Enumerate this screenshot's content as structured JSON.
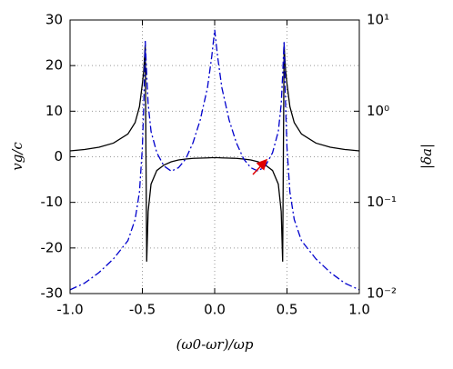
{
  "chart_data": {
    "type": "line",
    "x_label": "(ω0-ωr)/ωp",
    "y_label": "vg/c",
    "y2_label": "|δa|",
    "x": [
      -1,
      -0.9,
      -0.8,
      -0.7,
      -0.6,
      -0.55,
      -0.52,
      -0.5,
      -0.49,
      -0.48,
      -0.47,
      -0.46,
      -0.44,
      -0.4,
      -0.35,
      -0.3,
      -0.25,
      -0.2,
      -0.15,
      -0.1,
      -0.05,
      -0.02,
      0,
      0.02,
      0.05,
      0.1,
      0.15,
      0.2,
      0.25,
      0.3,
      0.35,
      0.4,
      0.44,
      0.46,
      0.47,
      0.48,
      0.49,
      0.5,
      0.52,
      0.55,
      0.6,
      0.7,
      0.8,
      0.9,
      1
    ],
    "series": [
      {
        "name": "vg/c",
        "color": "#000000",
        "dash": "none",
        "values": [
          1.3,
          1.6,
          2.1,
          3.0,
          5.0,
          7.5,
          11,
          16,
          19,
          24.5,
          -23,
          -12,
          -6,
          -3,
          -1.8,
          -1.1,
          -0.7,
          -0.5,
          -0.35,
          -0.3,
          -0.25,
          -0.2,
          -0.2,
          -0.2,
          -0.25,
          -0.3,
          -0.35,
          -0.5,
          -0.7,
          -1.1,
          -1.8,
          -3,
          -6,
          -12,
          -23,
          24.5,
          19,
          16,
          11,
          7.5,
          5.0,
          3.0,
          2.1,
          1.6,
          1.3
        ]
      },
      {
        "name": "|δa|",
        "color": "#0000cc",
        "dash": "8,3,2,3",
        "axis": "y2",
        "values": [
          0.011,
          0.013,
          0.017,
          0.024,
          0.038,
          0.065,
          0.13,
          0.4,
          1.2,
          5.9,
          2.5,
          1.2,
          0.6,
          0.35,
          0.25,
          0.22,
          0.24,
          0.3,
          0.45,
          0.8,
          1.8,
          4,
          7.8,
          4,
          1.8,
          0.8,
          0.45,
          0.3,
          0.24,
          0.22,
          0.25,
          0.35,
          0.6,
          1.2,
          2.5,
          5.9,
          1.2,
          0.4,
          0.13,
          0.065,
          0.038,
          0.024,
          0.017,
          0.013,
          0.011
        ]
      }
    ],
    "xlim": [
      -1,
      1
    ],
    "xticks": [
      {
        "value": -1,
        "label": "-1.0"
      },
      -0.5,
      {
        "value": 0,
        "label": "0.0"
      },
      0.5,
      {
        "value": 1,
        "label": "1.0"
      }
    ],
    "ylim": [
      -30,
      30
    ],
    "yticks": [
      -30,
      -20,
      -10,
      0,
      10,
      20,
      30
    ],
    "y2lim": [
      0.01,
      10
    ],
    "y2log": true,
    "y2ticks": [
      {
        "value": 0.01,
        "label": "10⁻²"
      },
      {
        "value": 0.1,
        "label": "10⁻¹"
      },
      {
        "value": 1,
        "label": "10⁰"
      },
      {
        "value": 10,
        "label": "10¹"
      }
    ],
    "grid": true
  }
}
